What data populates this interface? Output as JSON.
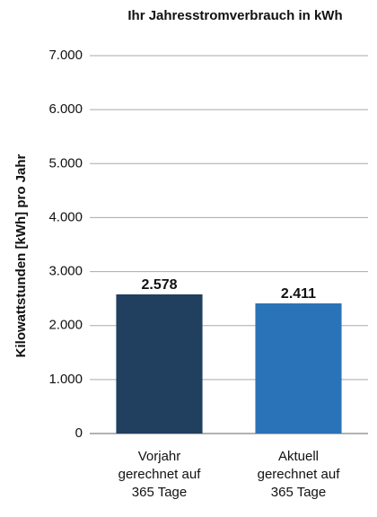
{
  "chart_data": {
    "type": "bar",
    "title": "Ihr Jahresstromverbrauch in kWh",
    "y_label": "Kilowattstunden [kWh] pro Jahr",
    "categories": [
      "Vorjahr\ngerechnet auf\n365 Tage",
      "Aktuell\ngerechnet auf\n365 Tage"
    ],
    "values": [
      2578,
      2411
    ],
    "value_labels": [
      "2.578",
      "2.411"
    ],
    "colors": [
      "#213f5f",
      "#2a73b8"
    ],
    "ylim": [
      0,
      7000
    ],
    "yticks": [
      0,
      {
        "value": 1000,
        "label": "1.000"
      },
      {
        "value": 2000,
        "label": "2.000"
      },
      {
        "value": 3000,
        "label": "3.000"
      },
      {
        "value": 4000,
        "label": "4.000"
      },
      {
        "value": 5000,
        "label": "5.000"
      },
      {
        "value": 6000,
        "label": "6.000"
      },
      {
        "value": 7000,
        "label": "7.000"
      }
    ],
    "grid": true
  }
}
